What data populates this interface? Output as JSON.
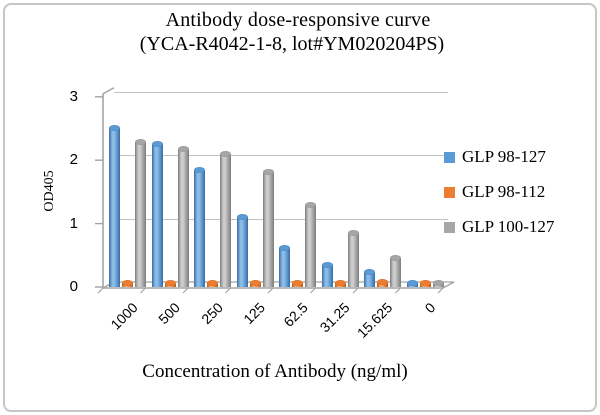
{
  "frame": {
    "background": "#ffffff",
    "border_color": "#c6c6c6"
  },
  "chart_data": {
    "type": "bar",
    "style": "3d-cylinder",
    "title": "Antibody dose-responsive curve",
    "subtitle": "(YCA-R4042-1-8, lot#YM020204PS)",
    "xlabel": "Concentration of Antibody (ng/ml)",
    "ylabel": "OD405",
    "categories": [
      "1000",
      "500",
      "250",
      "125",
      "62.5",
      "31.25",
      "15.625",
      "0"
    ],
    "y_ticks": [
      0,
      1,
      2,
      3
    ],
    "ylim": [
      0,
      3
    ],
    "grid": true,
    "legend_position": "right",
    "series": [
      {
        "name": "GLP 98-127",
        "color": "#5b9bd5",
        "color_light": "#8dbbe8",
        "color_dark": "#3a6b9c",
        "values": [
          2.5,
          2.25,
          1.85,
          1.1,
          0.62,
          0.35,
          0.24,
          0.06
        ]
      },
      {
        "name": "GLP 98-112",
        "color": "#ed7d31",
        "color_light": "#f5a66c",
        "color_dark": "#b55a17",
        "values": [
          0.07,
          0.07,
          0.07,
          0.07,
          0.07,
          0.06,
          0.08,
          0.06
        ]
      },
      {
        "name": "GLP 100-127",
        "color": "#a6a6a6",
        "color_light": "#cccccc",
        "color_dark": "#7c7c7c",
        "values": [
          2.28,
          2.18,
          2.1,
          1.82,
          1.3,
          0.85,
          0.46,
          0.06
        ]
      }
    ],
    "axis_color": "#a3a3a3",
    "gridline_color": "#c3c3c3",
    "text_color": "#000000"
  }
}
